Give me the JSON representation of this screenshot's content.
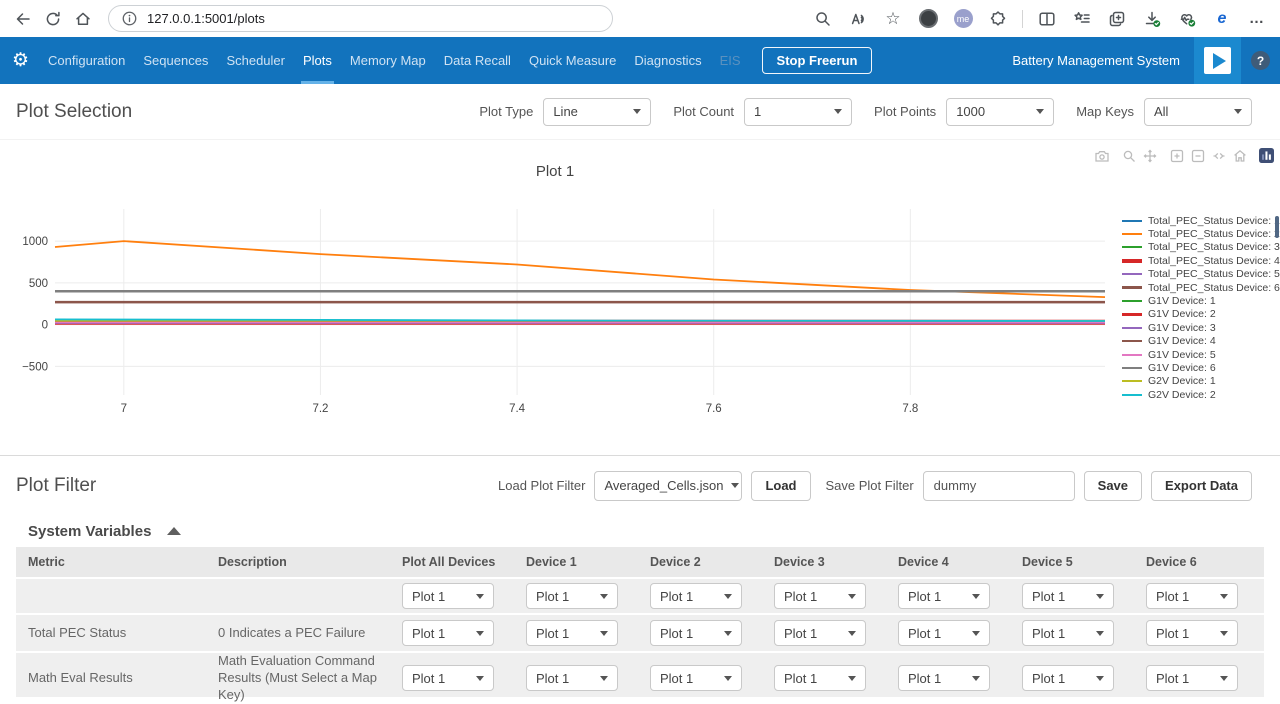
{
  "browser": {
    "url": "127.0.0.1:5001/plots",
    "profile_label": "me",
    "ie_label": "e"
  },
  "icons": {
    "gear": "⚙",
    "star": "☆",
    "ellipsis": "…",
    "help": "?"
  },
  "navbar": {
    "items": [
      "Configuration",
      "Sequences",
      "Scheduler",
      "Plots",
      "Memory Map",
      "Data Recall",
      "Quick Measure",
      "Diagnostics",
      "EIS"
    ],
    "active": "Plots",
    "disabled": "EIS",
    "stop_button": "Stop Freerun",
    "brand": "Battery Management System"
  },
  "plot_selection": {
    "title": "Plot Selection",
    "controls": [
      {
        "label": "Plot Type",
        "value": "Line"
      },
      {
        "label": "Plot Count",
        "value": "1"
      },
      {
        "label": "Plot Points",
        "value": "1000"
      },
      {
        "label": "Map Keys",
        "value": "All"
      }
    ]
  },
  "chart_data": {
    "type": "line",
    "title": "Plot 1",
    "xlabel": "",
    "ylabel": "",
    "xlim": [
      6.93,
      7.998
    ],
    "ylim": [
      -843,
      1385
    ],
    "xticks": [
      7,
      7.2,
      7.4,
      7.6,
      7.8
    ],
    "yticks": [
      -500,
      0,
      500,
      1000
    ],
    "grid": true,
    "legend_position": "right",
    "series": [
      {
        "name": "Total_PEC_Status Device: 1",
        "color": "#1f77b4",
        "width": 1.6,
        "x": [
          6.93,
          7.998
        ],
        "y": [
          30,
          30
        ]
      },
      {
        "name": "Total_PEC_Status Device: 2",
        "color": "#ff7f0e",
        "width": 1.8,
        "x": [
          6.93,
          7.0,
          7.2,
          7.4,
          7.6,
          7.8,
          7.998
        ],
        "y": [
          930,
          1000,
          845,
          720,
          540,
          415,
          330
        ]
      },
      {
        "name": "Total_PEC_Status Device: 3",
        "color": "#2ca02c",
        "width": 1.6,
        "x": [
          6.93,
          7.998
        ],
        "y": [
          24,
          24
        ]
      },
      {
        "name": "Total_PEC_Status Device: 4",
        "color": "#d62728",
        "width": 5,
        "x": [
          6.93,
          7.998
        ],
        "y": [
          28,
          28
        ]
      },
      {
        "name": "Total_PEC_Status Device: 5",
        "color": "#9467bd",
        "width": 1.6,
        "x": [
          6.93,
          7.998
        ],
        "y": [
          18,
          18
        ]
      },
      {
        "name": "Total_PEC_Status Device: 6",
        "color": "#8c564b",
        "width": 2.5,
        "x": [
          6.93,
          7.998
        ],
        "y": [
          270,
          270
        ]
      },
      {
        "name": "G1V Device: 1",
        "color": "#2ca02c",
        "width": 1.6,
        "x": [
          6.93,
          7.998
        ],
        "y": [
          24,
          24
        ]
      },
      {
        "name": "G1V Device: 2",
        "color": "#d62728",
        "width": 3,
        "x": [
          6.93,
          7.998
        ],
        "y": [
          30,
          30
        ]
      },
      {
        "name": "G1V Device: 3",
        "color": "#9467bd",
        "width": 1.6,
        "x": [
          6.93,
          7.998
        ],
        "y": [
          20,
          20
        ]
      },
      {
        "name": "G1V Device: 4",
        "color": "#8c564b",
        "width": 1.6,
        "x": [
          6.93,
          7.998
        ],
        "y": [
          268,
          268
        ]
      },
      {
        "name": "G1V Device: 5",
        "color": "#e377c2",
        "width": 1.6,
        "x": [
          6.93,
          7.998
        ],
        "y": [
          26,
          26
        ]
      },
      {
        "name": "G1V Device: 6",
        "color": "#7f7f7f",
        "width": 2.5,
        "x": [
          6.93,
          7.998
        ],
        "y": [
          400,
          400
        ]
      },
      {
        "name": "G2V Device: 1",
        "color": "#bcbd22",
        "width": 1.6,
        "x": [
          6.93,
          7.998
        ],
        "y": [
          46,
          46
        ]
      },
      {
        "name": "G2V Device: 2",
        "color": "#17becf",
        "width": 1.8,
        "x": [
          6.93,
          7.2,
          7.5,
          7.998
        ],
        "y": [
          62,
          57,
          48,
          44
        ]
      }
    ]
  },
  "plot_filter": {
    "title": "Plot Filter",
    "load_label": "Load Plot Filter",
    "load_value": "Averaged_Cells.json",
    "load_button": "Load",
    "save_label": "Save Plot Filter",
    "save_value": "dummy",
    "save_button": "Save",
    "export_button": "Export Data"
  },
  "system_variables": {
    "title": "System Variables",
    "columns": [
      "Metric",
      "Description",
      "Plot All Devices",
      "Device 1",
      "Device 2",
      "Device 3",
      "Device 4",
      "Device 5",
      "Device 6"
    ],
    "rows": [
      {
        "metric": "",
        "description": "",
        "selects": [
          "Plot 1",
          "Plot 1",
          "Plot 1",
          "Plot 1",
          "Plot 1",
          "Plot 1",
          "Plot 1"
        ]
      },
      {
        "metric": "Total PEC Status",
        "description": "0 Indicates a PEC Failure",
        "selects": [
          "Plot 1",
          "Plot 1",
          "Plot 1",
          "Plot 1",
          "Plot 1",
          "Plot 1",
          "Plot 1"
        ]
      },
      {
        "metric": "Math Eval Results",
        "description": "Math Evaluation Command Results (Must Select a Map Key)",
        "selects": [
          "Plot 1",
          "Plot 1",
          "Plot 1",
          "Plot 1",
          "Plot 1",
          "Plot 1",
          "Plot 1"
        ]
      }
    ]
  }
}
